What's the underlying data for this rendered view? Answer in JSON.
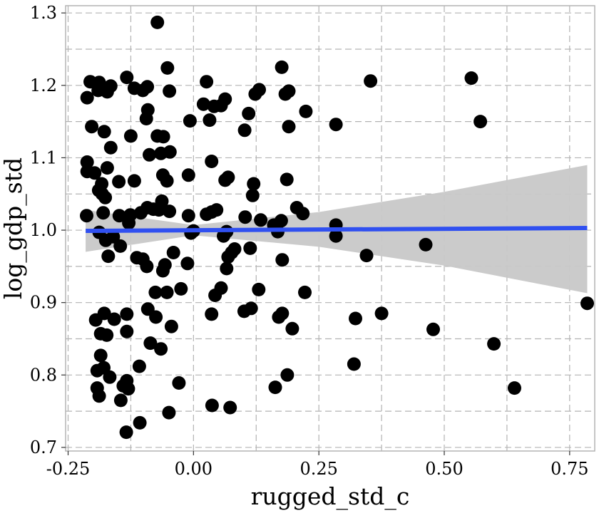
{
  "chart_data": {
    "type": "scatter",
    "title": "",
    "xlabel": "rugged_std_c",
    "ylabel": "log_gdp_std",
    "xlim": [
      -0.255,
      0.8
    ],
    "ylim": [
      0.695,
      1.31
    ],
    "x_ticks": [
      -0.25,
      0.0,
      0.25,
      0.5,
      0.75
    ],
    "x_tick_labels": [
      "-0.25",
      "0.00",
      "0.25",
      "0.50",
      "0.75"
    ],
    "y_ticks": [
      0.7,
      0.8,
      0.9,
      1.0,
      1.1,
      1.2,
      1.3
    ],
    "y_tick_labels": [
      "0.7",
      "0.8",
      "0.9",
      "1.0",
      "1.1",
      "1.2",
      "1.3"
    ],
    "grid": true,
    "minor_grid": true,
    "colors": {
      "points": "#000000",
      "fit_line": "#3050f0",
      "ribbon": "#c8c8c8",
      "grid": "#b3b3b3"
    },
    "points": [
      {
        "x": -0.072,
        "y": 1.287
      },
      {
        "x": -0.206,
        "y": 1.205
      },
      {
        "x": -0.188,
        "y": 1.204
      },
      {
        "x": -0.165,
        "y": 1.199
      },
      {
        "x": -0.133,
        "y": 1.211
      },
      {
        "x": -0.118,
        "y": 1.196
      },
      {
        "x": -0.101,
        "y": 1.193
      },
      {
        "x": -0.092,
        "y": 1.198
      },
      {
        "x": -0.052,
        "y": 1.224
      },
      {
        "x": -0.212,
        "y": 1.183
      },
      {
        "x": -0.19,
        "y": 1.193
      },
      {
        "x": -0.172,
        "y": 1.191
      },
      {
        "x": -0.091,
        "y": 1.166
      },
      {
        "x": -0.094,
        "y": 1.154
      },
      {
        "x": -0.048,
        "y": 1.192
      },
      {
        "x": 0.026,
        "y": 1.205
      },
      {
        "x": 0.02,
        "y": 1.174
      },
      {
        "x": 0.041,
        "y": 1.171
      },
      {
        "x": 0.063,
        "y": 1.181
      },
      {
        "x": 0.055,
        "y": 1.172
      },
      {
        "x": 0.032,
        "y": 1.152
      },
      {
        "x": -0.007,
        "y": 1.151
      },
      {
        "x": 0.102,
        "y": 1.138
      },
      {
        "x": 0.11,
        "y": 1.161
      },
      {
        "x": 0.123,
        "y": 1.188
      },
      {
        "x": 0.131,
        "y": 1.194
      },
      {
        "x": 0.176,
        "y": 1.225
      },
      {
        "x": 0.183,
        "y": 1.188
      },
      {
        "x": 0.19,
        "y": 1.192
      },
      {
        "x": 0.19,
        "y": 1.143
      },
      {
        "x": 0.224,
        "y": 1.164
      },
      {
        "x": 0.284,
        "y": 1.146
      },
      {
        "x": 0.353,
        "y": 1.206
      },
      {
        "x": 0.554,
        "y": 1.21
      },
      {
        "x": 0.572,
        "y": 1.15
      },
      {
        "x": -0.203,
        "y": 1.143
      },
      {
        "x": -0.178,
        "y": 1.136
      },
      {
        "x": -0.165,
        "y": 1.114
      },
      {
        "x": -0.125,
        "y": 1.13
      },
      {
        "x": -0.072,
        "y": 1.13
      },
      {
        "x": -0.06,
        "y": 1.129
      },
      {
        "x": -0.047,
        "y": 1.108
      },
      {
        "x": -0.088,
        "y": 1.104
      },
      {
        "x": -0.065,
        "y": 1.106
      },
      {
        "x": -0.212,
        "y": 1.094
      },
      {
        "x": -0.212,
        "y": 1.081
      },
      {
        "x": -0.197,
        "y": 1.079
      },
      {
        "x": -0.172,
        "y": 1.086
      },
      {
        "x": -0.149,
        "y": 1.067
      },
      {
        "x": -0.118,
        "y": 1.068
      },
      {
        "x": -0.189,
        "y": 1.055
      },
      {
        "x": -0.182,
        "y": 1.05
      },
      {
        "x": -0.176,
        "y": 1.045
      },
      {
        "x": -0.183,
        "y": 1.064
      },
      {
        "x": -0.061,
        "y": 1.076
      },
      {
        "x": -0.053,
        "y": 1.068
      },
      {
        "x": -0.01,
        "y": 1.076
      },
      {
        "x": 0.036,
        "y": 1.095
      },
      {
        "x": 0.063,
        "y": 1.069
      },
      {
        "x": 0.069,
        "y": 1.073
      },
      {
        "x": 0.12,
        "y": 1.064
      },
      {
        "x": 0.118,
        "y": 1.048
      },
      {
        "x": 0.186,
        "y": 1.07
      },
      {
        "x": -0.213,
        "y": 1.02
      },
      {
        "x": -0.18,
        "y": 1.024
      },
      {
        "x": -0.148,
        "y": 1.02
      },
      {
        "x": -0.126,
        "y": 1.021
      },
      {
        "x": -0.105,
        "y": 1.024
      },
      {
        "x": -0.092,
        "y": 1.031
      },
      {
        "x": -0.08,
        "y": 1.029
      },
      {
        "x": -0.063,
        "y": 1.04
      },
      {
        "x": -0.069,
        "y": 1.028
      },
      {
        "x": -0.048,
        "y": 1.026
      },
      {
        "x": -0.01,
        "y": 1.02
      },
      {
        "x": 0.026,
        "y": 1.022
      },
      {
        "x": 0.036,
        "y": 1.025
      },
      {
        "x": 0.046,
        "y": 1.028
      },
      {
        "x": 0.103,
        "y": 1.018
      },
      {
        "x": 0.134,
        "y": 1.014
      },
      {
        "x": 0.16,
        "y": 1.007
      },
      {
        "x": 0.175,
        "y": 1.013
      },
      {
        "x": 0.206,
        "y": 1.031
      },
      {
        "x": 0.218,
        "y": 1.023
      },
      {
        "x": -0.188,
        "y": 0.997
      },
      {
        "x": -0.175,
        "y": 0.986
      },
      {
        "x": -0.16,
        "y": 0.991
      },
      {
        "x": -0.146,
        "y": 0.978
      },
      {
        "x": -0.17,
        "y": 0.964
      },
      {
        "x": -0.129,
        "y": 1.01
      },
      {
        "x": -0.005,
        "y": 0.996
      },
      {
        "x": 0.0,
        "y": 0.999
      },
      {
        "x": 0.06,
        "y": 0.992
      },
      {
        "x": 0.066,
        "y": 0.998
      },
      {
        "x": 0.076,
        "y": 0.969
      },
      {
        "x": 0.082,
        "y": 0.974
      },
      {
        "x": 0.113,
        "y": 0.975
      },
      {
        "x": 0.168,
        "y": 0.998
      },
      {
        "x": 0.284,
        "y": 1.007
      },
      {
        "x": 0.284,
        "y": 0.992
      },
      {
        "x": 0.345,
        "y": 0.965
      },
      {
        "x": 0.463,
        "y": 0.98
      },
      {
        "x": -0.113,
        "y": 0.962
      },
      {
        "x": -0.101,
        "y": 0.96
      },
      {
        "x": -0.093,
        "y": 0.95
      },
      {
        "x": -0.057,
        "y": 0.952
      },
      {
        "x": -0.061,
        "y": 0.944
      },
      {
        "x": -0.04,
        "y": 0.969
      },
      {
        "x": -0.012,
        "y": 0.954
      },
      {
        "x": 0.066,
        "y": 0.947
      },
      {
        "x": 0.069,
        "y": 0.963
      },
      {
        "x": 0.177,
        "y": 0.959
      },
      {
        "x": -0.076,
        "y": 0.914
      },
      {
        "x": -0.053,
        "y": 0.914
      },
      {
        "x": -0.025,
        "y": 0.919
      },
      {
        "x": 0.043,
        "y": 0.91
      },
      {
        "x": 0.055,
        "y": 0.92
      },
      {
        "x": 0.13,
        "y": 0.918
      },
      {
        "x": 0.222,
        "y": 0.914
      },
      {
        "x": 0.785,
        "y": 0.899
      },
      {
        "x": -0.195,
        "y": 0.876
      },
      {
        "x": -0.178,
        "y": 0.885
      },
      {
        "x": -0.158,
        "y": 0.877
      },
      {
        "x": -0.133,
        "y": 0.884
      },
      {
        "x": -0.091,
        "y": 0.891
      },
      {
        "x": -0.075,
        "y": 0.88
      },
      {
        "x": -0.044,
        "y": 0.867
      },
      {
        "x": 0.036,
        "y": 0.884
      },
      {
        "x": 0.101,
        "y": 0.888
      },
      {
        "x": 0.115,
        "y": 0.892
      },
      {
        "x": 0.17,
        "y": 0.88
      },
      {
        "x": 0.177,
        "y": 0.885
      },
      {
        "x": 0.197,
        "y": 0.864
      },
      {
        "x": 0.323,
        "y": 0.878
      },
      {
        "x": 0.375,
        "y": 0.885
      },
      {
        "x": 0.478,
        "y": 0.863
      },
      {
        "x": -0.185,
        "y": 0.857
      },
      {
        "x": -0.173,
        "y": 0.855
      },
      {
        "x": -0.133,
        "y": 0.86
      },
      {
        "x": -0.086,
        "y": 0.844
      },
      {
        "x": -0.065,
        "y": 0.836
      },
      {
        "x": 0.599,
        "y": 0.843
      },
      {
        "x": -0.185,
        "y": 0.827
      },
      {
        "x": -0.192,
        "y": 0.806
      },
      {
        "x": -0.179,
        "y": 0.81
      },
      {
        "x": -0.108,
        "y": 0.812
      },
      {
        "x": -0.167,
        "y": 0.797
      },
      {
        "x": -0.133,
        "y": 0.792
      },
      {
        "x": -0.14,
        "y": 0.785
      },
      {
        "x": -0.029,
        "y": 0.789
      },
      {
        "x": 0.32,
        "y": 0.815
      },
      {
        "x": 0.187,
        "y": 0.8
      },
      {
        "x": -0.192,
        "y": 0.782
      },
      {
        "x": -0.188,
        "y": 0.771
      },
      {
        "x": -0.145,
        "y": 0.765
      },
      {
        "x": -0.13,
        "y": 0.781
      },
      {
        "x": 0.163,
        "y": 0.783
      },
      {
        "x": 0.64,
        "y": 0.782
      },
      {
        "x": -0.049,
        "y": 0.748
      },
      {
        "x": 0.037,
        "y": 0.758
      },
      {
        "x": 0.073,
        "y": 0.755
      },
      {
        "x": -0.134,
        "y": 0.721
      },
      {
        "x": -0.107,
        "y": 0.734
      }
    ],
    "fit_line": {
      "x": [
        -0.215,
        0.785
      ],
      "y": [
        0.999,
        1.003
      ]
    },
    "confidence_band": {
      "x": [
        -0.215,
        0.0,
        0.25,
        0.5,
        0.785
      ],
      "lower": [
        0.97,
        0.993,
        0.977,
        0.951,
        0.913
      ],
      "upper": [
        1.028,
        1.007,
        1.025,
        1.053,
        1.09
      ]
    }
  }
}
